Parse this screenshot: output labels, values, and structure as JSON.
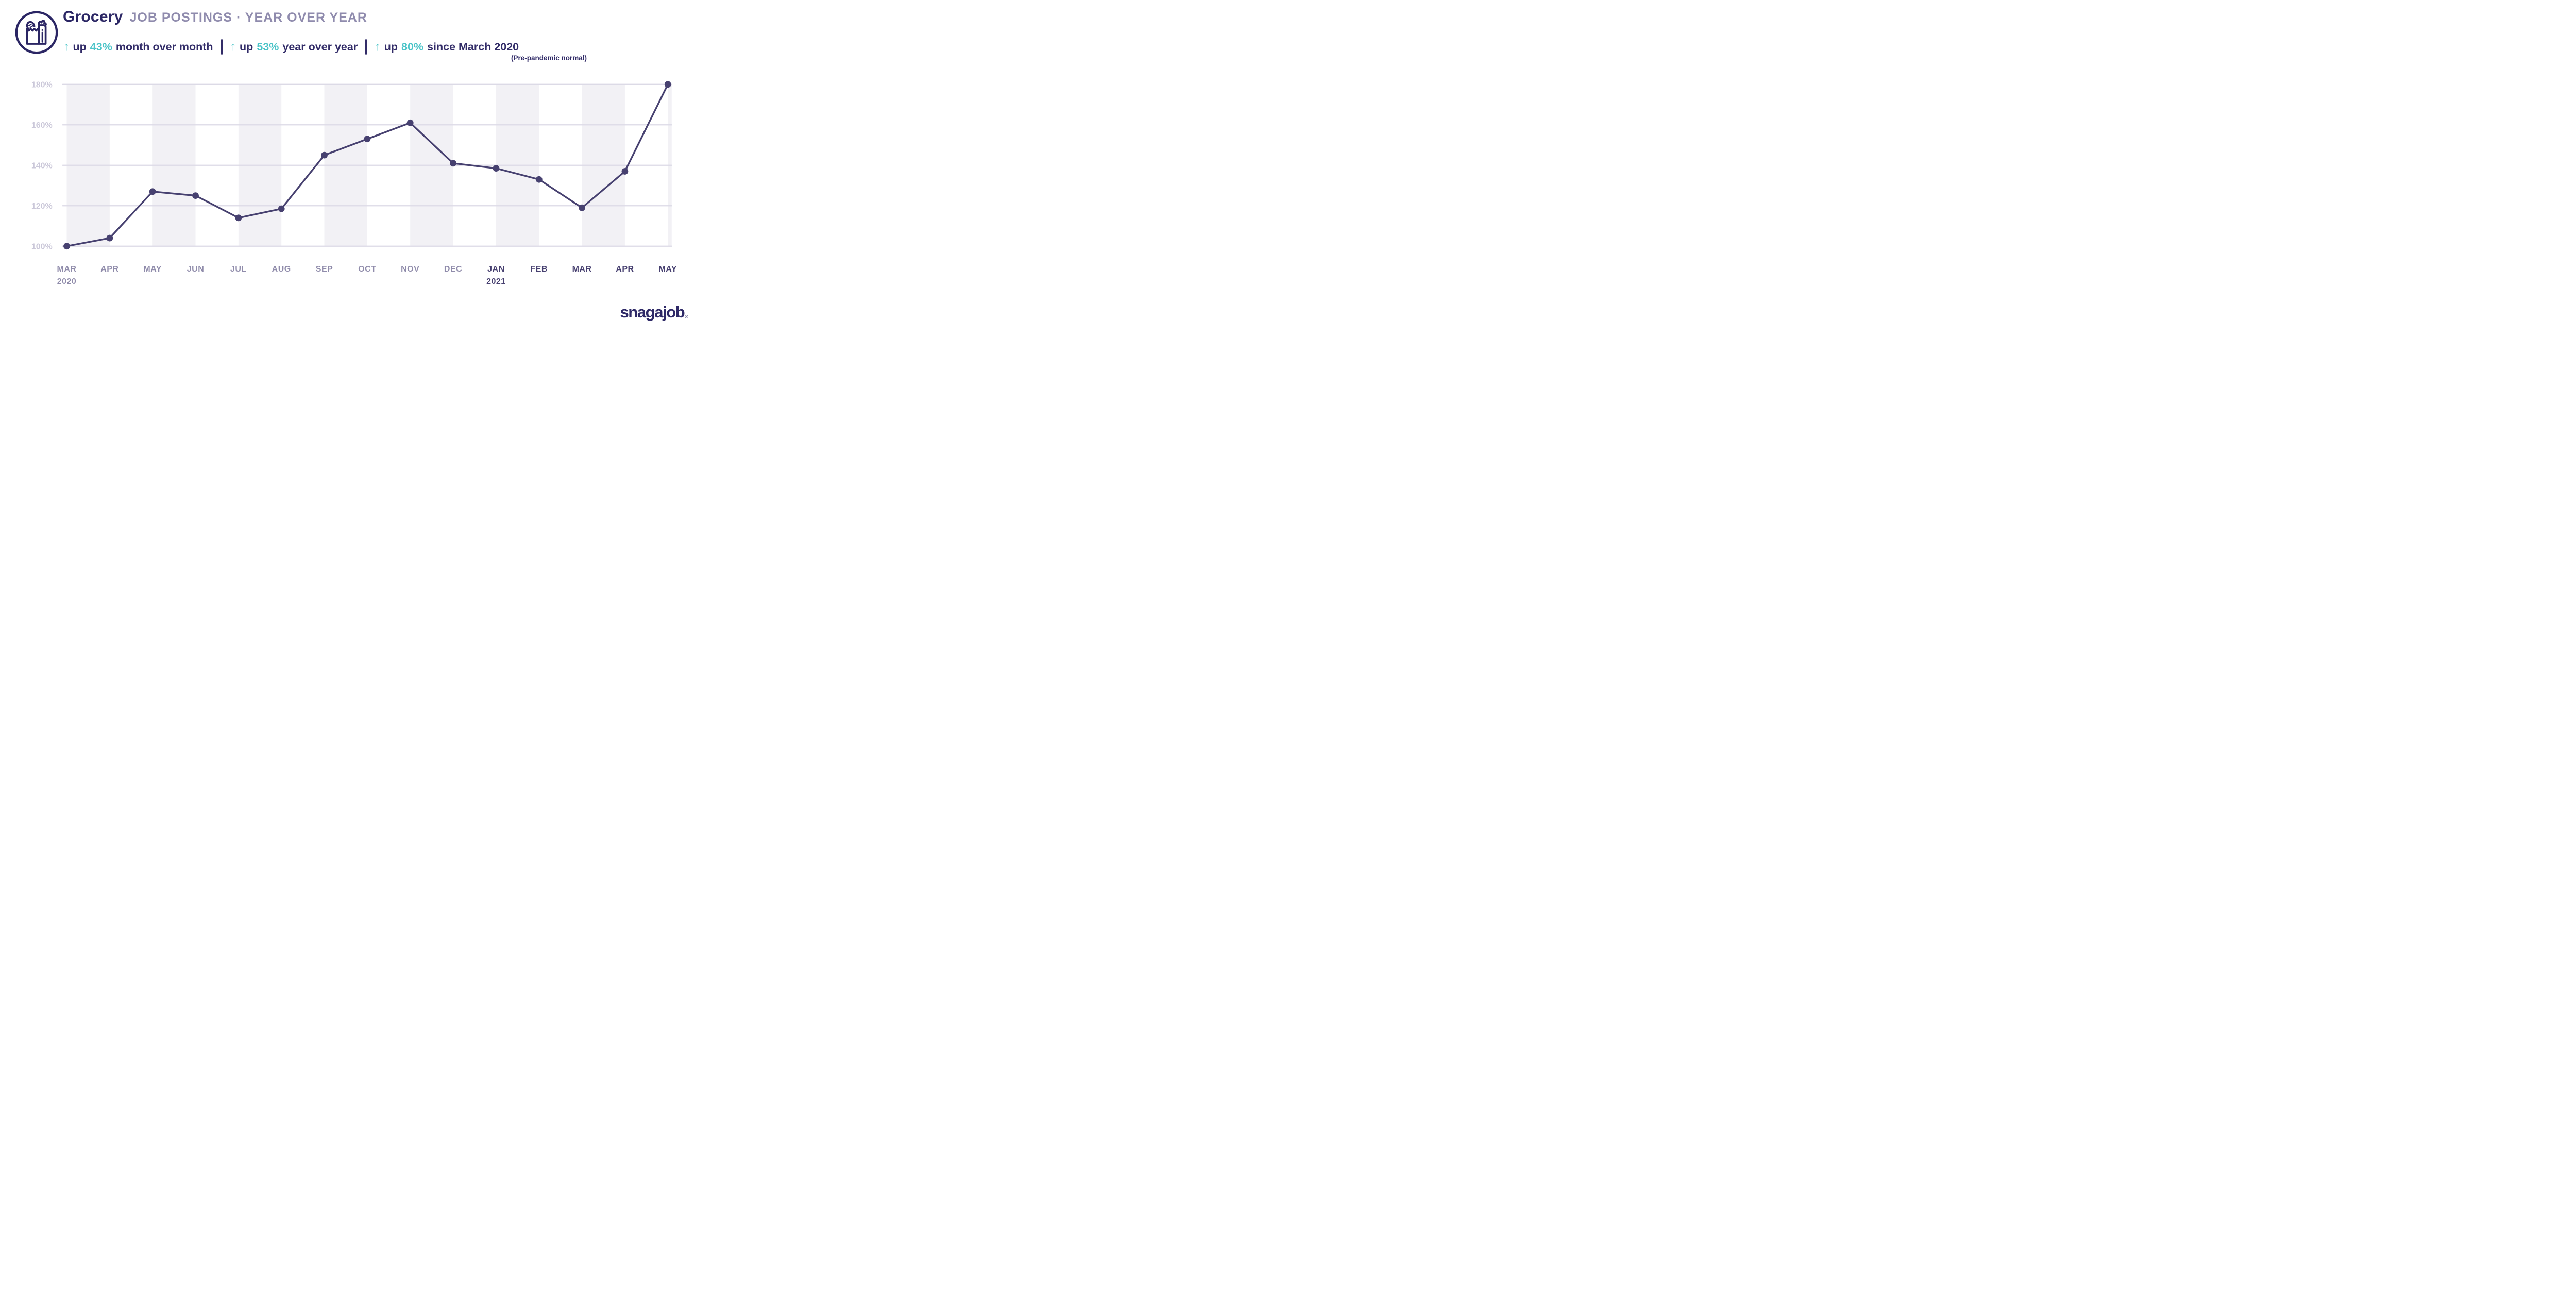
{
  "header": {
    "title": "Grocery",
    "subtitle": "JOB POSTINGS · YEAR OVER YEAR",
    "stats": [
      {
        "arrow": "↑",
        "prefix": "up",
        "value": "43%",
        "suffix": "month over month"
      },
      {
        "arrow": "↑",
        "prefix": "up",
        "value": "53%",
        "suffix": "year over year"
      },
      {
        "arrow": "↑",
        "prefix": "up",
        "value": "80%",
        "suffix": "since March 2020",
        "note": "(Pre-pandemic normal)"
      }
    ],
    "icon": "grocery-bag-icon"
  },
  "footer": {
    "logo": "snagajob",
    "registered": "®"
  },
  "colors": {
    "navy_text": "#322c68",
    "title_navy": "#2b2664",
    "subtitle_gray": "#8f8bad",
    "teal_accent": "#4cc4c8",
    "line_purple": "#474170",
    "gridline": "#dcdae6",
    "band_fill": "#f2f1f5",
    "ytick_label": "#cbc8d9",
    "xtick_2020": "#908cab",
    "xtick_2021": "#474070",
    "logo_navy": "#2e2967"
  },
  "chart_data": {
    "type": "line",
    "title": "Grocery job postings, year over year",
    "categories": [
      "MAR",
      "APR",
      "MAY",
      "JUN",
      "JUL",
      "AUG",
      "SEP",
      "OCT",
      "NOV",
      "DEC",
      "JAN",
      "FEB",
      "MAR",
      "APR",
      "MAY"
    ],
    "values": [
      100,
      104,
      127,
      125,
      114,
      118.5,
      145,
      153,
      161,
      141,
      138.5,
      133,
      119,
      137,
      180
    ],
    "year_labels": [
      {
        "index": 0,
        "text": "2020"
      },
      {
        "index": 10,
        "text": "2021"
      }
    ],
    "year_start_index_2021": 10,
    "ylim": [
      100,
      180
    ],
    "yticks": [
      100,
      120,
      140,
      160,
      180
    ],
    "ytick_suffix": "%",
    "xlabel": "",
    "ylabel": "",
    "grid": "horizontal gridlines on; alternating vertical month bands",
    "legend": "none"
  }
}
